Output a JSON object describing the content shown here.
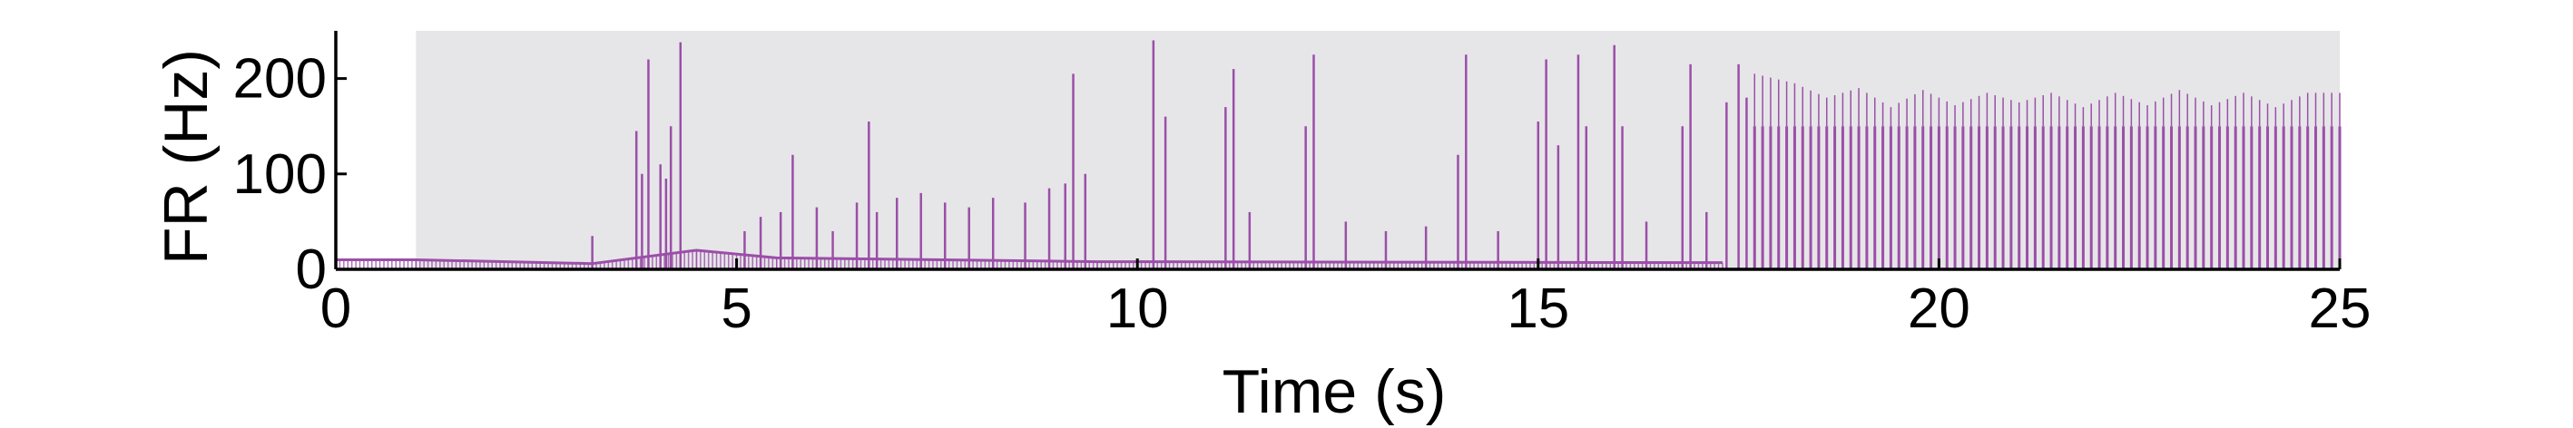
{
  "chart_data": {
    "type": "line",
    "title": "",
    "xlabel": "Time (s)",
    "ylabel": "FR (Hz)",
    "xlim": [
      0,
      25
    ],
    "ylim": [
      0,
      250
    ],
    "xticks": [
      0,
      5,
      10,
      15,
      20,
      25
    ],
    "yticks": [
      0,
      100,
      200
    ],
    "grid": false,
    "legend": "none",
    "shaded_region": {
      "x_start": 1.0,
      "x_end": 25.0,
      "color": "#e6e6e8"
    },
    "series": [
      {
        "color": "#9b4fa8",
        "baseline_segments": [
          {
            "x": [
              0,
              1,
              3.2
            ],
            "y": [
              10,
              10,
              6
            ]
          },
          {
            "x": [
              3.2,
              4.5,
              5.5,
              9.5,
              17.3
            ],
            "y": [
              6,
              20,
              12,
              8,
              7
            ]
          }
        ],
        "spikes": [
          {
            "x": 3.2,
            "y": 35
          },
          {
            "x": 3.75,
            "y": 145
          },
          {
            "x": 3.82,
            "y": 100
          },
          {
            "x": 3.9,
            "y": 220
          },
          {
            "x": 4.05,
            "y": 110
          },
          {
            "x": 4.12,
            "y": 95
          },
          {
            "x": 4.18,
            "y": 150
          },
          {
            "x": 4.3,
            "y": 238
          },
          {
            "x": 5.1,
            "y": 40
          },
          {
            "x": 5.3,
            "y": 55
          },
          {
            "x": 5.55,
            "y": 60
          },
          {
            "x": 5.7,
            "y": 120
          },
          {
            "x": 6.0,
            "y": 65
          },
          {
            "x": 6.2,
            "y": 40
          },
          {
            "x": 6.5,
            "y": 70
          },
          {
            "x": 6.65,
            "y": 155
          },
          {
            "x": 6.75,
            "y": 60
          },
          {
            "x": 7.0,
            "y": 75
          },
          {
            "x": 7.3,
            "y": 80
          },
          {
            "x": 7.6,
            "y": 70
          },
          {
            "x": 7.9,
            "y": 65
          },
          {
            "x": 8.2,
            "y": 75
          },
          {
            "x": 8.6,
            "y": 70
          },
          {
            "x": 8.9,
            "y": 85
          },
          {
            "x": 9.1,
            "y": 90
          },
          {
            "x": 9.2,
            "y": 205
          },
          {
            "x": 9.35,
            "y": 100
          },
          {
            "x": 10.2,
            "y": 240
          },
          {
            "x": 10.35,
            "y": 160
          },
          {
            "x": 11.1,
            "y": 170
          },
          {
            "x": 11.2,
            "y": 210
          },
          {
            "x": 11.4,
            "y": 60
          },
          {
            "x": 12.1,
            "y": 150
          },
          {
            "x": 12.2,
            "y": 225
          },
          {
            "x": 12.6,
            "y": 50
          },
          {
            "x": 13.1,
            "y": 40
          },
          {
            "x": 13.6,
            "y": 45
          },
          {
            "x": 14.0,
            "y": 120
          },
          {
            "x": 14.1,
            "y": 225
          },
          {
            "x": 14.5,
            "y": 40
          },
          {
            "x": 15.0,
            "y": 155
          },
          {
            "x": 15.1,
            "y": 220
          },
          {
            "x": 15.25,
            "y": 130
          },
          {
            "x": 15.5,
            "y": 225
          },
          {
            "x": 15.6,
            "y": 150
          },
          {
            "x": 15.95,
            "y": 235
          },
          {
            "x": 16.05,
            "y": 150
          },
          {
            "x": 16.35,
            "y": 50
          },
          {
            "x": 16.8,
            "y": 150
          },
          {
            "x": 16.9,
            "y": 215
          },
          {
            "x": 17.1,
            "y": 60
          },
          {
            "x": 17.35,
            "y": 175
          },
          {
            "x": 17.5,
            "y": 215
          },
          {
            "x": 17.6,
            "y": 180
          }
        ],
        "oscillation": {
          "x_start": 17.7,
          "x_end": 25.0,
          "spacing": 0.1,
          "peak_envelope": {
            "x": [
              17.7,
              18.2,
              18.6,
              19.0,
              19.4,
              19.8,
              20.2,
              20.6,
              21.0,
              21.4,
              21.8,
              22.2,
              22.6,
              23.0,
              23.4,
              23.8,
              24.2,
              24.6,
              25.0
            ],
            "y": [
              205,
              195,
              180,
              190,
              170,
              188,
              172,
              185,
              175,
              185,
              170,
              185,
              172,
              188,
              172,
              185,
              170,
              185,
              185
            ]
          },
          "trough_level": 150
        }
      }
    ]
  }
}
